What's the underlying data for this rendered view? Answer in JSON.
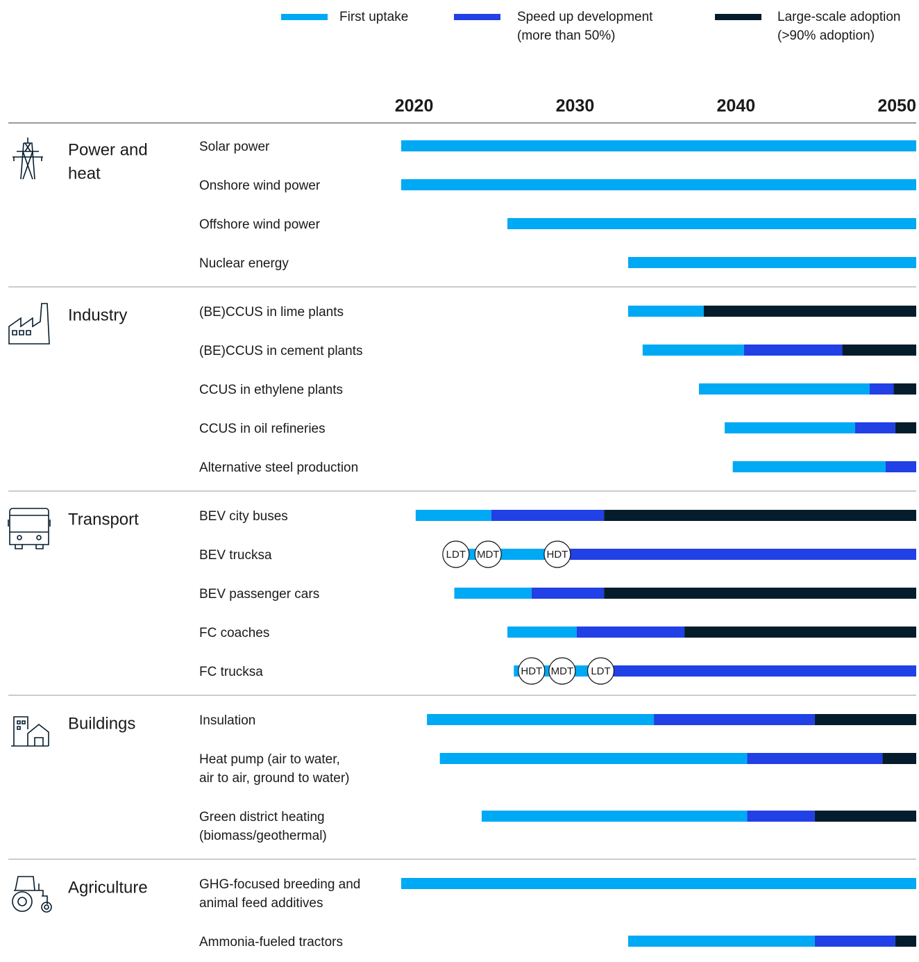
{
  "chart_data": {
    "type": "gantt",
    "xlim": [
      2018,
      2050
    ],
    "xticks": [
      2020,
      2030,
      2040,
      2050
    ],
    "phases": [
      {
        "name": [
          "First uptake"
        ],
        "color": "#00a9f4"
      },
      {
        "name": [
          "Speed up development",
          "(more than 50%)"
        ],
        "color": "#2140e6"
      },
      {
        "name": [
          "Large-scale adoption",
          "(>90% adoption)"
        ],
        "color": "#051c2c"
      }
    ],
    "groups": [
      {
        "label": [
          "Power and",
          "heat"
        ],
        "tasks": [
          {
            "label": [
              "Solar power"
            ],
            "starts": [
              2018,
              null,
              null
            ]
          },
          {
            "label": [
              "Onshore wind power"
            ],
            "starts": [
              2018,
              null,
              null
            ]
          },
          {
            "label": [
              "Offshore wind power"
            ],
            "starts": [
              2024.6,
              null,
              null
            ]
          },
          {
            "label": [
              "Nuclear energy"
            ],
            "starts": [
              2032.1,
              null,
              null
            ]
          }
        ]
      },
      {
        "label": [
          "Industry"
        ],
        "tasks": [
          {
            "label": [
              "(BE)CCUS in lime plants"
            ],
            "starts": [
              2032.1,
              null,
              2036.8
            ]
          },
          {
            "label": [
              "(BE)CCUS in cement plants"
            ],
            "starts": [
              2033.0,
              2039.3,
              2045.4
            ]
          },
          {
            "label": [
              "CCUS in ethylene plants"
            ],
            "starts": [
              2036.5,
              2047.1,
              2048.6
            ]
          },
          {
            "label": [
              "CCUS in oil refineries"
            ],
            "starts": [
              2038.1,
              2046.2,
              2048.7
            ]
          },
          {
            "label": [
              "Alternative steel production"
            ],
            "starts": [
              2038.6,
              2048.1,
              null
            ]
          }
        ]
      },
      {
        "label": [
          "Transport"
        ],
        "tasks": [
          {
            "label": [
              "BEV city buses"
            ],
            "starts": [
              2018.9,
              2023.6,
              2030.6
            ]
          },
          {
            "label": [
              "BEV trucksa"
            ],
            "starts": [
              2021.4,
              2028.5,
              null
            ],
            "markers": [
              {
                "label": "LDT",
                "x": 2021.4
              },
              {
                "label": "MDT",
                "x": 2023.4
              },
              {
                "label": "HDT",
                "x": 2027.7
              }
            ]
          },
          {
            "label": [
              "BEV passenger cars"
            ],
            "starts": [
              2021.3,
              2026.1,
              2030.6
            ]
          },
          {
            "label": [
              "FC coaches"
            ],
            "starts": [
              2024.6,
              2028.9,
              2035.6
            ]
          },
          {
            "label": [
              "FC trucksa"
            ],
            "starts": [
              2025.0,
              2031.2,
              null
            ],
            "markers": [
              {
                "label": "HDT",
                "x": 2026.1
              },
              {
                "label": "MDT",
                "x": 2028.0
              },
              {
                "label": "LDT",
                "x": 2030.4
              }
            ]
          }
        ]
      },
      {
        "label": [
          "Buildings"
        ],
        "tasks": [
          {
            "label": [
              "Insulation"
            ],
            "starts": [
              2019.6,
              2033.7,
              2043.7
            ]
          },
          {
            "label": [
              "Heat pump (air to water,",
              "air to air, ground to water)"
            ],
            "starts": [
              2020.4,
              2039.5,
              2047.9
            ]
          },
          {
            "label": [
              "Green district heating",
              "(biomass/geothermal)"
            ],
            "starts": [
              2023.0,
              2039.5,
              2043.7
            ]
          }
        ]
      },
      {
        "label": [
          "Agriculture"
        ],
        "tasks": [
          {
            "label": [
              "GHG-focused breeding and",
              "animal feed additives"
            ],
            "starts": [
              2018,
              null,
              null
            ]
          },
          {
            "label": [
              "Ammonia-fueled tractors"
            ],
            "starts": [
              2032.1,
              2043.7,
              2048.7
            ]
          }
        ]
      }
    ]
  }
}
